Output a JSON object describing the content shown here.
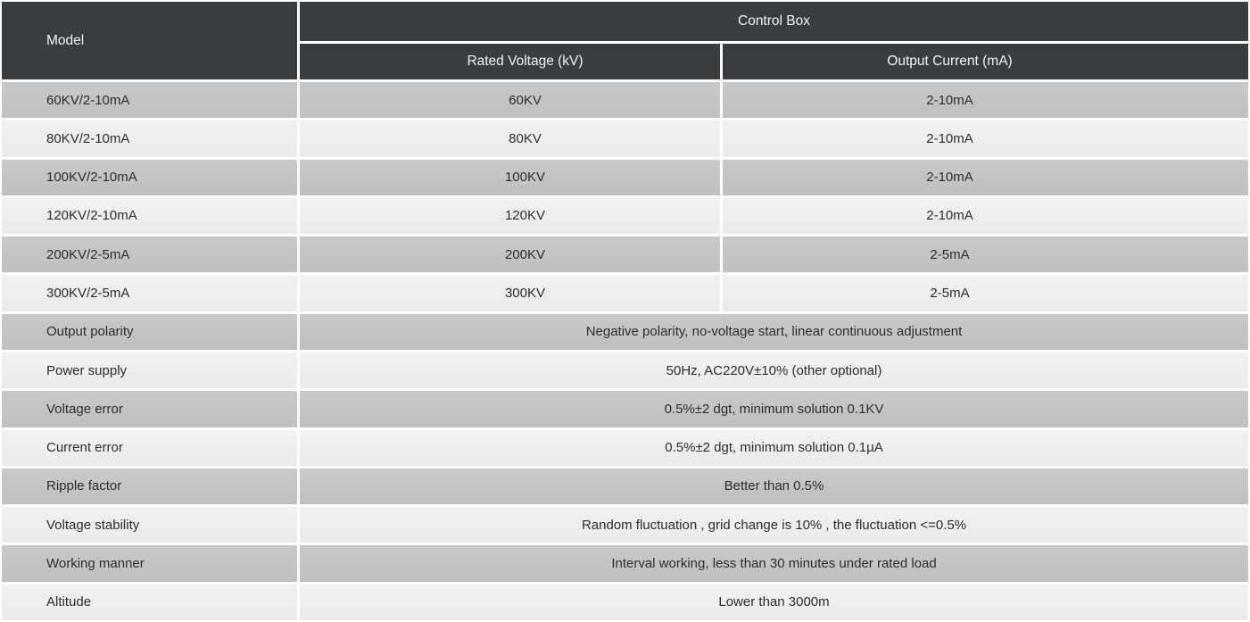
{
  "colors": {
    "header_bg": "#3a3d3f",
    "header_text": "#f2f2f2",
    "row_gray_top": "#c9c9c9",
    "row_gray_bottom": "#bfbfbf",
    "row_light_top": "#f1f1f1",
    "row_light_bottom": "#ebebeb",
    "body_text": "#2d2d2d",
    "grid_line": "#ffffff"
  },
  "table": {
    "header": {
      "model": "Model",
      "control_box": "Control Box",
      "rated_voltage": "Rated Voltage (kV)",
      "output_current": "Output Current (mA)"
    },
    "model_rows": [
      {
        "model": "60KV/2-10mA",
        "rated_voltage": "60KV",
        "output_current": "2-10mA"
      },
      {
        "model": "80KV/2-10mA",
        "rated_voltage": "80KV",
        "output_current": "2-10mA"
      },
      {
        "model": "100KV/2-10mA",
        "rated_voltage": "100KV",
        "output_current": "2-10mA"
      },
      {
        "model": "120KV/2-10mA",
        "rated_voltage": "120KV",
        "output_current": "2-10mA"
      },
      {
        "model": "200KV/2-5mA",
        "rated_voltage": "200KV",
        "output_current": "2-5mA"
      },
      {
        "model": "300KV/2-5mA",
        "rated_voltage": "300KV",
        "output_current": "2-5mA"
      }
    ],
    "spec_rows": [
      {
        "label": "Output polarity",
        "value": "Negative polarity, no-voltage start, linear continuous adjustment"
      },
      {
        "label": "Power supply",
        "value": "50Hz, AC220V±10% (other optional)"
      },
      {
        "label": "Voltage error",
        "value": "0.5%±2 dgt, minimum solution 0.1KV"
      },
      {
        "label": "Current error",
        "value": "0.5%±2 dgt, minimum solution 0.1µA"
      },
      {
        "label": "Ripple factor",
        "value": "Better than 0.5%"
      },
      {
        "label": "Voltage stability",
        "value": "Random fluctuation , grid change is 10% , the fluctuation <=0.5%"
      },
      {
        "label": "Working manner",
        "value": "Interval working, less than 30 minutes under rated load"
      },
      {
        "label": "Altitude",
        "value": "Lower than 3000m"
      }
    ]
  }
}
